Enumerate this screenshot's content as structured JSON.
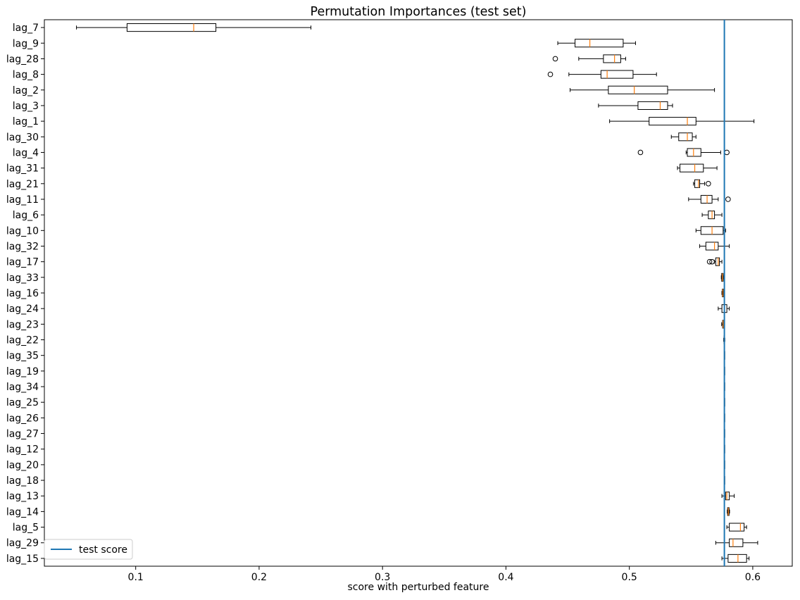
{
  "chart_data": {
    "type": "boxplot",
    "orientation": "horizontal",
    "title": "Permutation Importances (test set)",
    "xlabel": "score with perturbed feature",
    "ylabel": "",
    "xlim": [
      0.026,
      0.632
    ],
    "xticks": [
      0.1,
      0.2,
      0.3,
      0.4,
      0.5,
      0.6
    ],
    "xtick_labels": [
      "0.1",
      "0.2",
      "0.3",
      "0.4",
      "0.5",
      "0.6"
    ],
    "grid": false,
    "reference_line": {
      "name": "test score",
      "x": 0.577,
      "color": "#1f77b4"
    },
    "legend": {
      "position": "lower-left",
      "entries": [
        "test score"
      ]
    },
    "box_color": "#000000",
    "median_color": "#ff7f0e",
    "categories": [
      "lag_7",
      "lag_9",
      "lag_28",
      "lag_8",
      "lag_2",
      "lag_3",
      "lag_1",
      "lag_30",
      "lag_4",
      "lag_31",
      "lag_21",
      "lag_11",
      "lag_6",
      "lag_10",
      "lag_32",
      "lag_17",
      "lag_33",
      "lag_16",
      "lag_24",
      "lag_23",
      "lag_22",
      "lag_35",
      "lag_19",
      "lag_34",
      "lag_25",
      "lag_26",
      "lag_27",
      "lag_12",
      "lag_20",
      "lag_18",
      "lag_13",
      "lag_14",
      "lag_5",
      "lag_29",
      "lag_15"
    ],
    "boxes": [
      {
        "label": "lag_7",
        "whislo": 0.052,
        "q1": 0.093,
        "med": 0.147,
        "q3": 0.165,
        "whishi": 0.242,
        "fliers": []
      },
      {
        "label": "lag_9",
        "whislo": 0.442,
        "q1": 0.456,
        "med": 0.468,
        "q3": 0.495,
        "whishi": 0.505,
        "fliers": []
      },
      {
        "label": "lag_28",
        "whislo": 0.459,
        "q1": 0.479,
        "med": 0.488,
        "q3": 0.493,
        "whishi": 0.497,
        "fliers": [
          0.44
        ]
      },
      {
        "label": "lag_8",
        "whislo": 0.451,
        "q1": 0.477,
        "med": 0.482,
        "q3": 0.503,
        "whishi": 0.522,
        "fliers": [
          0.436
        ]
      },
      {
        "label": "lag_2",
        "whislo": 0.452,
        "q1": 0.483,
        "med": 0.504,
        "q3": 0.531,
        "whishi": 0.569,
        "fliers": []
      },
      {
        "label": "lag_3",
        "whislo": 0.475,
        "q1": 0.507,
        "med": 0.525,
        "q3": 0.531,
        "whishi": 0.535,
        "fliers": []
      },
      {
        "label": "lag_1",
        "whislo": 0.484,
        "q1": 0.516,
        "med": 0.547,
        "q3": 0.554,
        "whishi": 0.601,
        "fliers": []
      },
      {
        "label": "lag_30",
        "whislo": 0.534,
        "q1": 0.54,
        "med": 0.547,
        "q3": 0.551,
        "whishi": 0.554,
        "fliers": []
      },
      {
        "label": "lag_4",
        "whislo": 0.546,
        "q1": 0.547,
        "med": 0.552,
        "q3": 0.558,
        "whishi": 0.574,
        "fliers": [
          0.509,
          0.579
        ]
      },
      {
        "label": "lag_31",
        "whislo": 0.539,
        "q1": 0.541,
        "med": 0.553,
        "q3": 0.56,
        "whishi": 0.571,
        "fliers": []
      },
      {
        "label": "lag_21",
        "whislo": 0.552,
        "q1": 0.553,
        "med": 0.556,
        "q3": 0.557,
        "whishi": 0.561,
        "fliers": [
          0.564
        ]
      },
      {
        "label": "lag_11",
        "whislo": 0.548,
        "q1": 0.558,
        "med": 0.563,
        "q3": 0.567,
        "whishi": 0.572,
        "fliers": [
          0.58
        ]
      },
      {
        "label": "lag_6",
        "whislo": 0.559,
        "q1": 0.564,
        "med": 0.567,
        "q3": 0.569,
        "whishi": 0.575,
        "fliers": []
      },
      {
        "label": "lag_10",
        "whislo": 0.554,
        "q1": 0.558,
        "med": 0.567,
        "q3": 0.576,
        "whishi": 0.578,
        "fliers": []
      },
      {
        "label": "lag_32",
        "whislo": 0.557,
        "q1": 0.562,
        "med": 0.569,
        "q3": 0.572,
        "whishi": 0.581,
        "fliers": []
      },
      {
        "label": "lag_17",
        "whislo": 0.569,
        "q1": 0.57,
        "med": 0.572,
        "q3": 0.573,
        "whishi": 0.575,
        "fliers": [
          0.565,
          0.567
        ]
      },
      {
        "label": "lag_33",
        "whislo": 0.5745,
        "q1": 0.5748,
        "med": 0.5755,
        "q3": 0.576,
        "whishi": 0.5762,
        "fliers": []
      },
      {
        "label": "lag_16",
        "whislo": 0.575,
        "q1": 0.5754,
        "med": 0.5758,
        "q3": 0.5762,
        "whishi": 0.5766,
        "fliers": []
      },
      {
        "label": "lag_24",
        "whislo": 0.572,
        "q1": 0.575,
        "med": 0.577,
        "q3": 0.579,
        "whishi": 0.581,
        "fliers": []
      },
      {
        "label": "lag_23",
        "whislo": 0.5748,
        "q1": 0.5756,
        "med": 0.576,
        "q3": 0.5764,
        "whishi": 0.5772,
        "fliers": []
      },
      {
        "label": "lag_22",
        "whislo": 0.5764,
        "q1": 0.5767,
        "med": 0.5769,
        "q3": 0.5771,
        "whishi": 0.5774,
        "fliers": []
      },
      {
        "label": "lag_35",
        "whislo": 0.577,
        "q1": 0.577,
        "med": 0.577,
        "q3": 0.577,
        "whishi": 0.577,
        "fliers": []
      },
      {
        "label": "lag_19",
        "whislo": 0.577,
        "q1": 0.577,
        "med": 0.577,
        "q3": 0.577,
        "whishi": 0.577,
        "fliers": []
      },
      {
        "label": "lag_34",
        "whislo": 0.577,
        "q1": 0.577,
        "med": 0.577,
        "q3": 0.577,
        "whishi": 0.577,
        "fliers": []
      },
      {
        "label": "lag_25",
        "whislo": 0.577,
        "q1": 0.577,
        "med": 0.577,
        "q3": 0.577,
        "whishi": 0.577,
        "fliers": []
      },
      {
        "label": "lag_26",
        "whislo": 0.577,
        "q1": 0.577,
        "med": 0.577,
        "q3": 0.577,
        "whishi": 0.577,
        "fliers": []
      },
      {
        "label": "lag_27",
        "whislo": 0.577,
        "q1": 0.577,
        "med": 0.577,
        "q3": 0.577,
        "whishi": 0.577,
        "fliers": []
      },
      {
        "label": "lag_12",
        "whislo": 0.577,
        "q1": 0.577,
        "med": 0.577,
        "q3": 0.577,
        "whishi": 0.577,
        "fliers": []
      },
      {
        "label": "lag_20",
        "whislo": 0.577,
        "q1": 0.577,
        "med": 0.577,
        "q3": 0.577,
        "whishi": 0.577,
        "fliers": []
      },
      {
        "label": "lag_18",
        "whislo": 0.577,
        "q1": 0.577,
        "med": 0.577,
        "q3": 0.577,
        "whishi": 0.577,
        "fliers": []
      },
      {
        "label": "lag_13",
        "whislo": 0.575,
        "q1": 0.578,
        "med": 0.579,
        "q3": 0.581,
        "whishi": 0.585,
        "fliers": []
      },
      {
        "label": "lag_14",
        "whislo": 0.5793,
        "q1": 0.5796,
        "med": 0.5802,
        "q3": 0.5808,
        "whishi": 0.5812,
        "fliers": []
      },
      {
        "label": "lag_5",
        "whislo": 0.579,
        "q1": 0.581,
        "med": 0.59,
        "q3": 0.593,
        "whishi": 0.595,
        "fliers": []
      },
      {
        "label": "lag_29",
        "whislo": 0.57,
        "q1": 0.581,
        "med": 0.584,
        "q3": 0.592,
        "whishi": 0.604,
        "fliers": []
      },
      {
        "label": "lag_15",
        "whislo": 0.575,
        "q1": 0.58,
        "med": 0.588,
        "q3": 0.595,
        "whishi": 0.597,
        "fliers": []
      }
    ]
  }
}
